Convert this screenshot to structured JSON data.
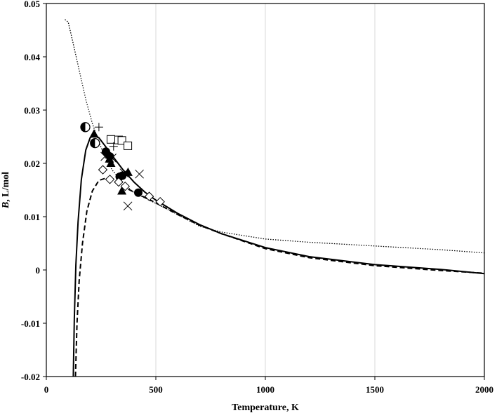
{
  "chart_data": {
    "type": "scatter",
    "xlabel": "Temperature, K",
    "ylabel_italic": "B",
    "ylabel_rest": ", L/mol",
    "xlim": [
      0,
      2000
    ],
    "ylim": [
      -0.02,
      0.05
    ],
    "x_ticks": [
      0,
      500,
      1000,
      1500,
      2000
    ],
    "y_ticks": [
      -0.02,
      -0.01,
      0,
      0.01,
      0.02,
      0.03,
      0.04,
      0.05
    ],
    "x_tick_labels": [
      "0",
      "500",
      "1000",
      "1500",
      "2000"
    ],
    "y_tick_labels": [
      "-0.02",
      "-0.01",
      "0",
      "0.01",
      "0.02",
      "0.03",
      "0.04",
      "0.05"
    ],
    "grid": "vertical",
    "legend": "none",
    "curves": [
      {
        "style": "solid",
        "x": [
          123,
          128,
          135,
          145,
          160,
          180,
          200,
          220,
          240,
          270,
          300,
          350,
          400,
          450,
          500,
          600,
          700,
          800,
          1000,
          1200,
          1500,
          1800,
          2000
        ],
        "y": [
          -0.02,
          -0.009,
          0.001,
          0.009,
          0.017,
          0.0225,
          0.0248,
          0.0253,
          0.0248,
          0.0232,
          0.0215,
          0.0188,
          0.0165,
          0.0146,
          0.0131,
          0.0106,
          0.0085,
          0.0068,
          0.0042,
          0.0025,
          0.001,
          0.0001,
          -0.0007
        ]
      },
      {
        "style": "dashed",
        "x": [
          133,
          140,
          150,
          165,
          185,
          210,
          240,
          270,
          300,
          350,
          400,
          500,
          600,
          700,
          800,
          1000,
          1200,
          1500,
          1800,
          2000
        ],
        "y": [
          -0.02,
          -0.01,
          -0.002,
          0.005,
          0.011,
          0.0148,
          0.0168,
          0.0172,
          0.0168,
          0.0157,
          0.0146,
          0.0126,
          0.0104,
          0.0084,
          0.0068,
          0.004,
          0.0023,
          0.0008,
          -0.0001,
          -0.0006
        ]
      },
      {
        "style": "dotted",
        "x": [
          85,
          100,
          120,
          150,
          180,
          210,
          240,
          270,
          300,
          350,
          400,
          500,
          600,
          700,
          800,
          1000,
          1200,
          1500,
          1800,
          2000
        ],
        "y": [
          0.047,
          0.0465,
          0.043,
          0.0375,
          0.032,
          0.0275,
          0.024,
          0.021,
          0.0188,
          0.0163,
          0.0145,
          0.0125,
          0.0104,
          0.0082,
          0.0071,
          0.0058,
          0.0052,
          0.0045,
          0.0038,
          0.0032
        ]
      }
    ],
    "markers": [
      {
        "shape": "half-circle",
        "points": [
          [
            178,
            0.0268
          ],
          [
            222,
            0.0238
          ]
        ]
      },
      {
        "shape": "filled-circle",
        "points": [
          [
            272,
            0.0222
          ],
          [
            290,
            0.0213
          ],
          [
            335,
            0.0175
          ],
          [
            347,
            0.0177
          ],
          [
            420,
            0.0145
          ]
        ]
      },
      {
        "shape": "filled-triangle",
        "points": [
          [
            218,
            0.0255
          ],
          [
            288,
            0.0208
          ],
          [
            295,
            0.02
          ],
          [
            345,
            0.0148
          ],
          [
            373,
            0.0183
          ]
        ]
      },
      {
        "shape": "open-square",
        "points": [
          [
            295,
            0.0245
          ],
          [
            330,
            0.0244
          ],
          [
            345,
            0.0243
          ],
          [
            372,
            0.0233
          ]
        ]
      },
      {
        "shape": "x-mark",
        "points": [
          [
            268,
            0.0213
          ],
          [
            300,
            0.021
          ],
          [
            355,
            0.0182
          ],
          [
            372,
            0.012
          ],
          [
            425,
            0.018
          ]
        ]
      },
      {
        "shape": "plus",
        "points": [
          [
            240,
            0.0268
          ],
          [
            307,
            0.0232
          ]
        ]
      },
      {
        "shape": "open-diamond",
        "points": [
          [
            258,
            0.0188
          ],
          [
            290,
            0.017
          ],
          [
            330,
            0.0165
          ],
          [
            360,
            0.0157
          ],
          [
            470,
            0.0138
          ],
          [
            520,
            0.0128
          ]
        ]
      }
    ]
  }
}
